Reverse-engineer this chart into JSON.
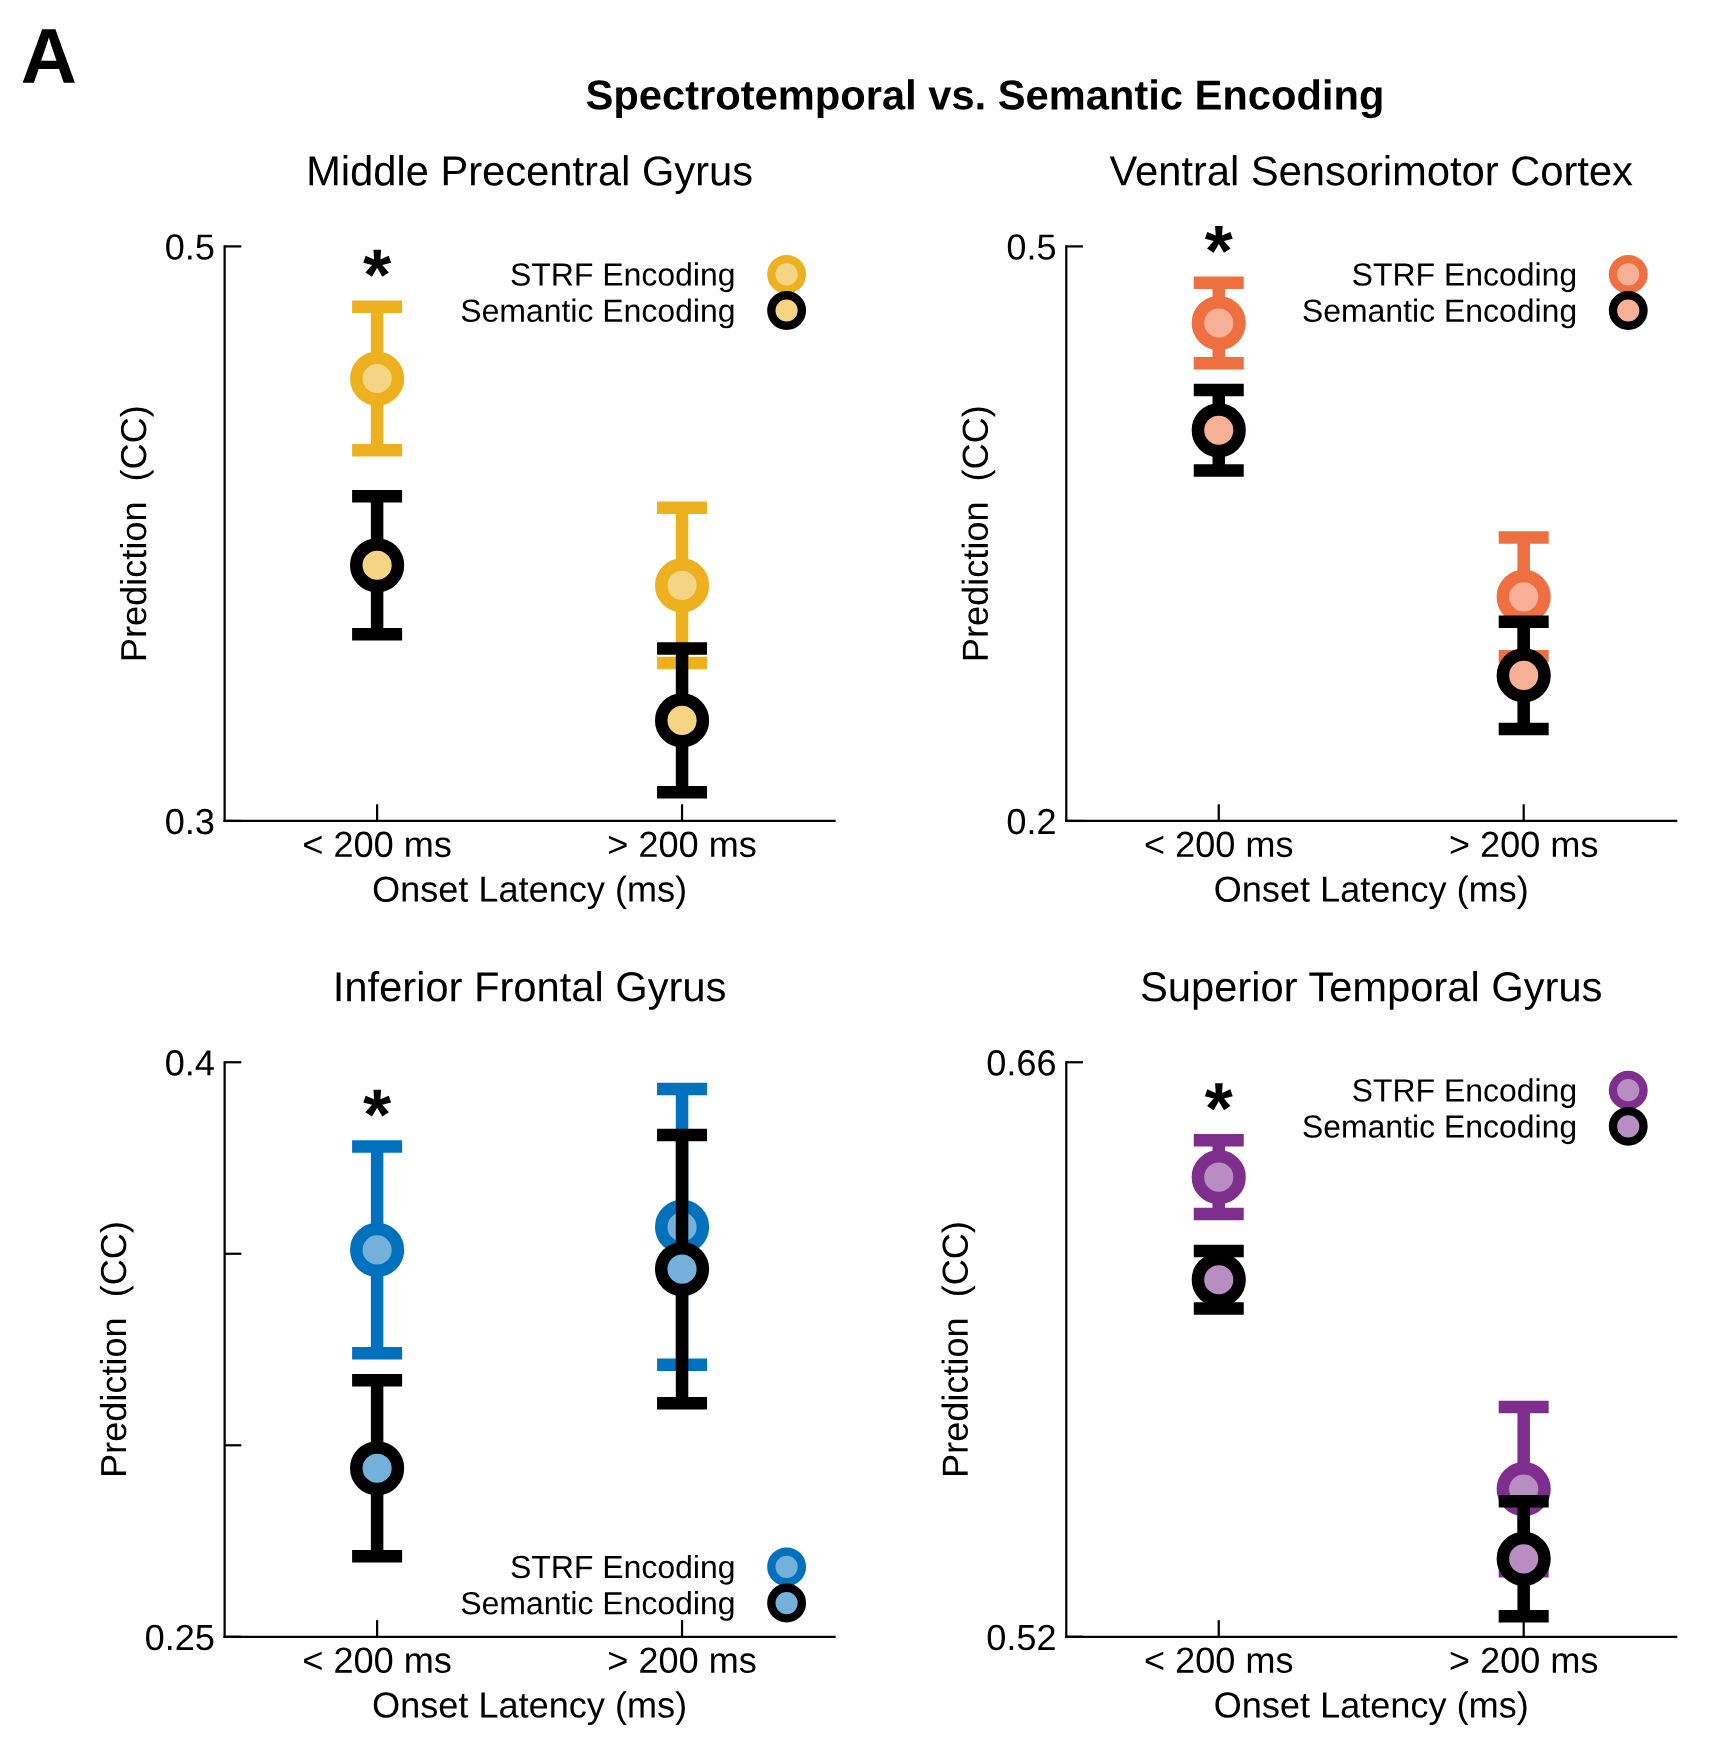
{
  "chart_data": [
    {
      "type": "scatter",
      "title": "Middle Precentral Gyrus",
      "xlabel": "Onset Latency (ms)",
      "ylabel": "Prediction  (CC)",
      "categories": [
        "< 200 ms",
        "> 200 ms"
      ],
      "ylim": [
        0.3,
        0.5
      ],
      "yticks": [
        0.3,
        0.5
      ],
      "legend": "top right",
      "marker": "circle",
      "grid": false,
      "series": [
        {
          "name": "STRF Encoding",
          "color": "#edb120",
          "values": [
            0.454,
            0.382
          ],
          "errors": [
            0.025,
            0.027
          ]
        },
        {
          "name": "Semantic Encoding",
          "color": "#000000",
          "values": [
            0.389,
            0.335
          ],
          "errors": [
            0.024,
            0.025
          ]
        }
      ],
      "annotations": [
        "A",
        "Spectrotemporal vs. Semantic Encoding",
        "*"
      ]
    },
    {
      "type": "scatter",
      "title": "Ventral Sensorimotor Cortex",
      "xlabel": "Onset Latency (ms)",
      "ylabel": "Prediction  (CC)",
      "categories": [
        "< 200 ms",
        "> 200 ms"
      ],
      "ylim": [
        0.2,
        0.5
      ],
      "yticks": [
        0.2,
        0.5
      ],
      "legend": "top right",
      "marker": "circle",
      "grid": false,
      "series": [
        {
          "name": "STRF Encoding",
          "color": "#ee6f3f",
          "values": [
            0.46,
            0.317
          ],
          "errors": [
            0.021,
            0.031
          ]
        },
        {
          "name": "Semantic Encoding",
          "color": "#000000",
          "values": [
            0.404,
            0.276
          ],
          "errors": [
            0.021,
            0.028
          ]
        }
      ],
      "annotations": [
        "*"
      ]
    },
    {
      "type": "scatter",
      "title": "Inferior Frontal Gyrus",
      "xlabel": "Onset Latency (ms)",
      "ylabel": "Prediction  (CC)",
      "categories": [
        "< 200 ms",
        "> 200 ms"
      ],
      "ylim": [
        0.25,
        0.4
      ],
      "yticks": [
        0.25,
        {
          "value": 0.3,
          "label": null
        },
        {
          "value": 0.35,
          "label": null
        },
        0.4
      ],
      "legend": "bottom right",
      "marker": "circle",
      "grid": false,
      "series": [
        {
          "name": "STRF Encoding",
          "color": "#0072bd",
          "values": [
            0.351,
            0.357
          ],
          "errors": [
            0.027,
            0.036
          ]
        },
        {
          "name": "Semantic Encoding",
          "color": "#000000",
          "values": [
            0.294,
            0.346
          ],
          "errors": [
            0.023,
            0.035
          ]
        }
      ],
      "annotations": [
        "*"
      ]
    },
    {
      "type": "scatter",
      "title": "Superior Temporal Gyrus",
      "xlabel": "Onset Latency (ms)",
      "ylabel": "Prediction  (CC)",
      "categories": [
        "< 200 ms",
        "> 200 ms"
      ],
      "ylim": [
        0.52,
        0.66
      ],
      "yticks": [
        0.52,
        0.66
      ],
      "legend": "top right",
      "marker": "circle",
      "grid": false,
      "series": [
        {
          "name": "STRF Encoding",
          "color": "#7e2f8e",
          "values": [
            0.632,
            0.556
          ],
          "errors": [
            0.009,
            0.02
          ]
        },
        {
          "name": "Semantic Encoding",
          "color": "#000000",
          "values": [
            0.607,
            0.539
          ],
          "errors": [
            0.007,
            0.014
          ]
        }
      ],
      "annotations": [
        "*"
      ]
    }
  ]
}
